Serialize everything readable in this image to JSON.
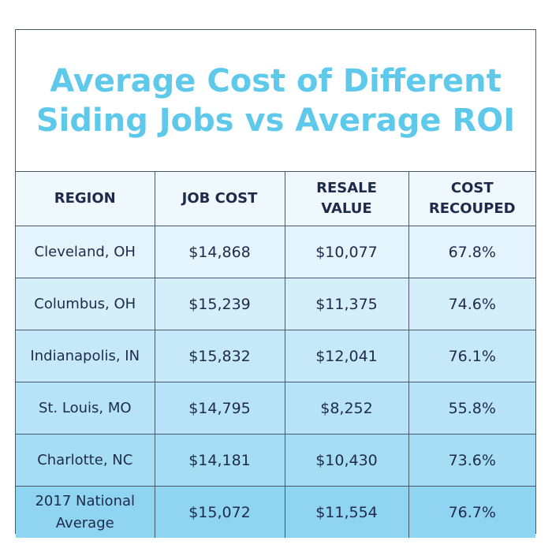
{
  "title": {
    "line1": "Average Cost of Different",
    "line2": "Siding Jobs vs Average ROI"
  },
  "colors": {
    "title": "#5fc9ec",
    "text": "#1f2a4b",
    "row_shades": [
      "#e4f4fc",
      "#d4eefa",
      "#c5e9f9",
      "#b6e3f7",
      "#a5ddf5",
      "#8fd5f2"
    ]
  },
  "chart_data": {
    "type": "table",
    "columns": [
      "REGION",
      "JOB COST",
      "RESALE VALUE",
      "COST RECOUPED"
    ],
    "header_lines": [
      [
        "REGION"
      ],
      [
        "JOB COST"
      ],
      [
        "RESALE",
        "VALUE"
      ],
      [
        "COST",
        "RECOUPED"
      ]
    ],
    "rows": [
      {
        "region": "Cleveland, OH",
        "job_cost": "$14,868",
        "resale_value": "$10,077",
        "cost_recouped": "67.8%"
      },
      {
        "region": "Columbus, OH",
        "job_cost": "$15,239",
        "resale_value": "$11,375",
        "cost_recouped": "74.6%"
      },
      {
        "region": "Indianapolis, IN",
        "job_cost": "$15,832",
        "resale_value": "$12,041",
        "cost_recouped": "76.1%"
      },
      {
        "region": "St. Louis, MO",
        "job_cost": "$14,795",
        "resale_value": "$8,252",
        "cost_recouped": "55.8%"
      },
      {
        "region": "Charlotte, NC",
        "job_cost": "$14,181",
        "resale_value": "$10,430",
        "cost_recouped": "73.6%"
      },
      {
        "region": "2017 National Average",
        "job_cost": "$15,072",
        "resale_value": "$11,554",
        "cost_recouped": "76.7%"
      }
    ]
  }
}
